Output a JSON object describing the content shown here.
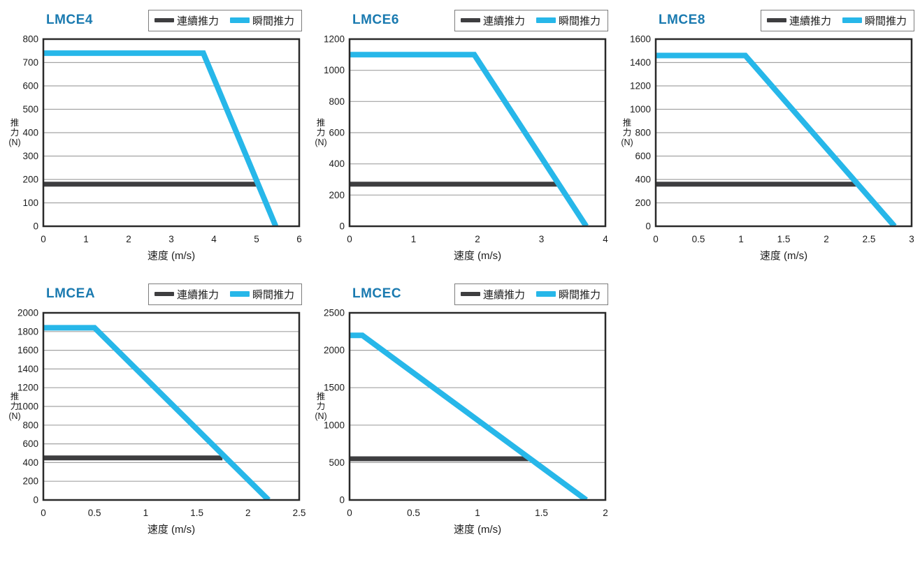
{
  "page": {
    "background": "#ffffff"
  },
  "colors": {
    "title": "#1a7ab0",
    "continuous": "#3e3e40",
    "instant": "#27b7e9",
    "grid": "#a3a3a3",
    "axis": "#2a2a2a",
    "text": "#1c1c1c",
    "legend_border": "#7d7d7d"
  },
  "chart_data": [
    {
      "type": "line",
      "title": "LMCE4",
      "xlabel": "速度 (m/s)",
      "ylabel": "推力(N)",
      "ylabel_lines": [
        "推",
        "力",
        "(N)"
      ],
      "xlim": [
        0,
        6
      ],
      "ylim": [
        0,
        800
      ],
      "xtick_labels": [
        "0",
        "1",
        "2",
        "3",
        "4",
        "5",
        "6"
      ],
      "ytick_labels": [
        "0",
        "100",
        "200",
        "300",
        "400",
        "500",
        "600",
        "700",
        "800"
      ],
      "grid": "horizontal",
      "legend_position": "top-right",
      "series": [
        {
          "name": "連續推力",
          "color": "#3e3e40",
          "points": [
            [
              0,
              180
            ],
            [
              5.0,
              180
            ]
          ]
        },
        {
          "name": "瞬間推力",
          "color": "#27b7e9",
          "points": [
            [
              0,
              740
            ],
            [
              3.75,
              740
            ],
            [
              5.45,
              0
            ]
          ]
        }
      ]
    },
    {
      "type": "line",
      "title": "LMCE6",
      "xlabel": "速度 (m/s)",
      "ylabel": "推力(N)",
      "ylabel_lines": [
        "推",
        "力",
        "(N)"
      ],
      "xlim": [
        0,
        4
      ],
      "ylim": [
        0,
        1200
      ],
      "xtick_labels": [
        "0",
        "1",
        "2",
        "3",
        "4"
      ],
      "ytick_labels": [
        "0",
        "200",
        "400",
        "600",
        "800",
        "1000",
        "1200"
      ],
      "grid": "horizontal",
      "legend_position": "top-right",
      "series": [
        {
          "name": "連續推力",
          "color": "#3e3e40",
          "points": [
            [
              0,
              270
            ],
            [
              3.25,
              270
            ]
          ]
        },
        {
          "name": "瞬間推力",
          "color": "#27b7e9",
          "points": [
            [
              0,
              1100
            ],
            [
              1.95,
              1100
            ],
            [
              3.7,
              0
            ]
          ]
        }
      ]
    },
    {
      "type": "line",
      "title": "LMCE8",
      "xlabel": "速度 (m/s)",
      "ylabel": "推力(N)",
      "ylabel_lines": [
        "推",
        "力",
        "(N)"
      ],
      "xlim": [
        0,
        3
      ],
      "ylim": [
        0,
        1600
      ],
      "xtick_labels": [
        "0",
        "0.5",
        "1",
        "1.5",
        "2",
        "2.5",
        "3"
      ],
      "ytick_labels": [
        "0",
        "200",
        "400",
        "600",
        "800",
        "1000",
        "1200",
        "1400",
        "1600"
      ],
      "grid": "horizontal",
      "legend_position": "top-right",
      "series": [
        {
          "name": "連續推力",
          "color": "#3e3e40",
          "points": [
            [
              0,
              360
            ],
            [
              2.35,
              360
            ]
          ]
        },
        {
          "name": "瞬間推力",
          "color": "#27b7e9",
          "points": [
            [
              0,
              1460
            ],
            [
              1.05,
              1460
            ],
            [
              2.8,
              0
            ]
          ]
        }
      ]
    },
    {
      "type": "line",
      "title": "LMCEA",
      "xlabel": "速度 (m/s)",
      "ylabel": "推力(N)",
      "ylabel_lines": [
        "推",
        "力",
        "(N)"
      ],
      "xlim": [
        0,
        2.5
      ],
      "ylim": [
        0,
        2000
      ],
      "xtick_labels": [
        "0",
        "0.5",
        "1",
        "1.5",
        "2",
        "2.5"
      ],
      "ytick_labels": [
        "0",
        "200",
        "400",
        "600",
        "800",
        "1000",
        "1200",
        "1400",
        "1600",
        "1800",
        "2000"
      ],
      "grid": "horizontal",
      "legend_position": "top-right",
      "series": [
        {
          "name": "連續推力",
          "color": "#3e3e40",
          "points": [
            [
              0,
              450
            ],
            [
              1.75,
              450
            ]
          ]
        },
        {
          "name": "瞬間推力",
          "color": "#27b7e9",
          "points": [
            [
              0,
              1840
            ],
            [
              0.5,
              1840
            ],
            [
              2.2,
              0
            ]
          ]
        }
      ]
    },
    {
      "type": "line",
      "title": "LMCEC",
      "xlabel": "速度 (m/s)",
      "ylabel": "推力(N)",
      "ylabel_lines": [
        "推",
        "力",
        "(N)"
      ],
      "xlim": [
        0,
        2
      ],
      "ylim": [
        0,
        2500
      ],
      "xtick_labels": [
        "0",
        "0.5",
        "1",
        "1.5",
        "2"
      ],
      "ytick_labels": [
        "0",
        "500",
        "1000",
        "1500",
        "2000",
        "2500"
      ],
      "grid": "horizontal",
      "legend_position": "top-right",
      "series": [
        {
          "name": "連續推力",
          "color": "#3e3e40",
          "points": [
            [
              0,
              550
            ],
            [
              1.4,
              550
            ]
          ]
        },
        {
          "name": "瞬間推力",
          "color": "#27b7e9",
          "points": [
            [
              0,
              2200
            ],
            [
              0.1,
              2200
            ],
            [
              1.85,
              0
            ]
          ]
        }
      ]
    }
  ]
}
